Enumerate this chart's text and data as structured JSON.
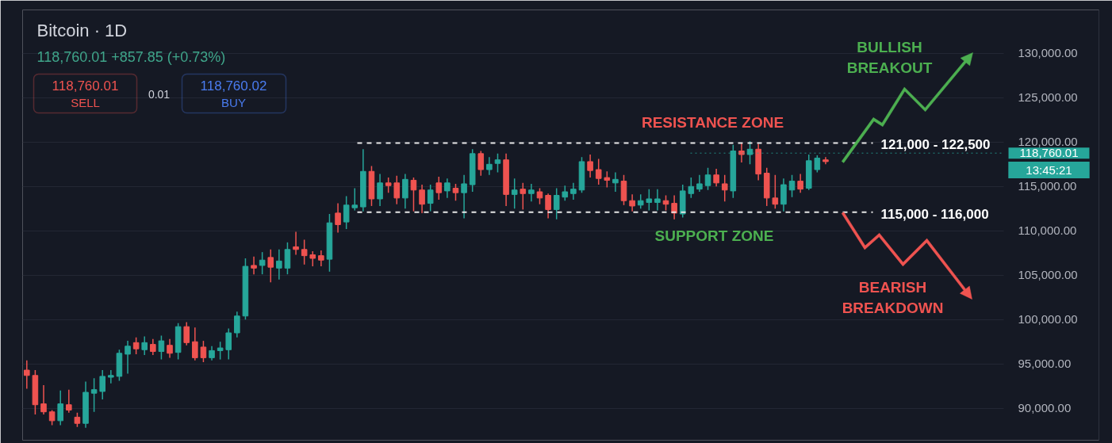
{
  "chart_data": {
    "type": "candlestick",
    "title": "Bitcoin · 1D",
    "categories": [
      null,
      null,
      null,
      null,
      null,
      null,
      null,
      null,
      null,
      null,
      null,
      null,
      null,
      null,
      null,
      null,
      null,
      null,
      null,
      null,
      null,
      null,
      null,
      null,
      null,
      null,
      null,
      null,
      null,
      null,
      null,
      null,
      null,
      null,
      null,
      null,
      null,
      null,
      null,
      null,
      null,
      null,
      null,
      null,
      null,
      null,
      null,
      null,
      null,
      null,
      null,
      null,
      null,
      null,
      null,
      null,
      null,
      null,
      null,
      null,
      null,
      null,
      null,
      null,
      null,
      null,
      null,
      null,
      null,
      null,
      null,
      null,
      null,
      null,
      null,
      null,
      null,
      null,
      null,
      null,
      null,
      null,
      null,
      null,
      null,
      null,
      null,
      null,
      null,
      null,
      null,
      null,
      null,
      null,
      null,
      null,
      null,
      null,
      null,
      null,
      null,
      null,
      null,
      null,
      null,
      null,
      null,
      null,
      null,
      null,
      null,
      null,
      null,
      null,
      null,
      null,
      null,
      null,
      null,
      null,
      null,
      null,
      null,
      null,
      null,
      null,
      null,
      null
    ],
    "ohlc": [
      [
        94300,
        95400,
        92200,
        93700
      ],
      [
        93700,
        94300,
        89300,
        90400
      ],
      [
        90500,
        92600,
        89300,
        89600
      ],
      [
        89600,
        89800,
        88100,
        88600
      ],
      [
        88600,
        92000,
        88100,
        90500
      ],
      [
        90400,
        92100,
        89500,
        89800
      ],
      [
        89000,
        89500,
        87900,
        88300
      ],
      [
        88300,
        93000,
        87800,
        91800
      ],
      [
        91700,
        93400,
        89600,
        92100
      ],
      [
        91900,
        94300,
        91000,
        93600
      ],
      [
        93500,
        94300,
        92800,
        93700
      ],
      [
        93600,
        96600,
        93100,
        96200
      ],
      [
        96100,
        97600,
        93900,
        97000
      ],
      [
        97400,
        98000,
        96100,
        96700
      ],
      [
        96600,
        98100,
        96000,
        97400
      ],
      [
        97200,
        97800,
        96000,
        96400
      ],
      [
        96400,
        98200,
        95500,
        97600
      ],
      [
        97100,
        97800,
        95700,
        96200
      ],
      [
        96300,
        99600,
        95500,
        99200
      ],
      [
        99200,
        99700,
        97100,
        97400
      ],
      [
        97500,
        99100,
        95400,
        95700
      ],
      [
        96900,
        97600,
        95200,
        95700
      ],
      [
        95700,
        97000,
        95400,
        96500
      ],
      [
        96500,
        97500,
        95500,
        96800
      ],
      [
        96600,
        99000,
        95500,
        98500
      ],
      [
        98500,
        100900,
        98000,
        100400
      ],
      [
        100400,
        106900,
        100000,
        106000
      ],
      [
        106100,
        107100,
        105100,
        105800
      ],
      [
        106100,
        107600,
        105100,
        106700
      ],
      [
        107000,
        107900,
        104200,
        105900
      ],
      [
        105800,
        107900,
        104500,
        106600
      ],
      [
        105800,
        108700,
        105100,
        107900
      ],
      [
        108200,
        109900,
        107300,
        107900
      ],
      [
        107900,
        109000,
        106200,
        107200
      ],
      [
        107300,
        107700,
        106000,
        106900
      ],
      [
        107200,
        107800,
        106000,
        106700
      ],
      [
        106800,
        111900,
        105400,
        110900
      ],
      [
        112000,
        113100,
        109800,
        110700
      ],
      [
        111000,
        113900,
        110200,
        112900
      ],
      [
        112600,
        114800,
        112300,
        112900
      ],
      [
        112700,
        119200,
        112200,
        116700
      ],
      [
        116700,
        117300,
        112800,
        113600
      ],
      [
        113600,
        116400,
        112800,
        115400
      ],
      [
        115400,
        116000,
        114300,
        115100
      ],
      [
        115400,
        116200,
        113000,
        113700
      ],
      [
        113700,
        116400,
        112500,
        115800
      ],
      [
        115700,
        116000,
        112200,
        114600
      ],
      [
        114600,
        115200,
        112000,
        113000
      ],
      [
        113100,
        115200,
        112200,
        114600
      ],
      [
        115400,
        116100,
        113500,
        114300
      ],
      [
        114500,
        115900,
        113700,
        115400
      ],
      [
        114800,
        115300,
        113400,
        114300
      ],
      [
        114300,
        116300,
        111400,
        115300
      ],
      [
        115200,
        119200,
        114400,
        118700
      ],
      [
        118700,
        119000,
        116200,
        116900
      ],
      [
        116900,
        118300,
        116300,
        117500
      ],
      [
        117600,
        118700,
        116600,
        118000
      ],
      [
        118000,
        118700,
        112800,
        114100
      ],
      [
        114100,
        115900,
        112500,
        114600
      ],
      [
        114700,
        115400,
        112400,
        114200
      ],
      [
        114200,
        115300,
        113300,
        114600
      ],
      [
        114400,
        114800,
        113000,
        113700
      ],
      [
        114000,
        114200,
        111400,
        112400
      ],
      [
        112400,
        114800,
        111300,
        114000
      ],
      [
        113800,
        115100,
        113400,
        114400
      ],
      [
        114200,
        115400,
        113500,
        114700
      ],
      [
        114600,
        118300,
        114300,
        117800
      ],
      [
        117800,
        118600,
        116000,
        116800
      ],
      [
        116900,
        118100,
        115200,
        115900
      ],
      [
        116000,
        116700,
        114900,
        115700
      ],
      [
        115400,
        116600,
        114400,
        115800
      ],
      [
        115600,
        116300,
        112900,
        113400
      ],
      [
        113400,
        114100,
        112200,
        112800
      ],
      [
        112900,
        114100,
        112500,
        113400
      ],
      [
        113200,
        114700,
        112300,
        113600
      ],
      [
        113200,
        114700,
        112300,
        113600
      ],
      [
        113400,
        114000,
        112300,
        113000
      ],
      [
        113100,
        114000,
        111300,
        112000
      ],
      [
        111900,
        115200,
        111500,
        114500
      ],
      [
        114200,
        116000,
        113700,
        115000
      ],
      [
        114700,
        116300,
        114400,
        115300
      ],
      [
        115100,
        117100,
        114600,
        116300
      ],
      [
        116300,
        117000,
        115000,
        115400
      ],
      [
        115300,
        116300,
        113300,
        114600
      ],
      [
        114500,
        119700,
        113700,
        119000
      ],
      [
        119000,
        119900,
        117700,
        118600
      ],
      [
        118600,
        120100,
        117500,
        119200
      ],
      [
        119200,
        119800,
        115700,
        116400
      ],
      [
        116500,
        117100,
        112800,
        113700
      ],
      [
        113700,
        116300,
        112500,
        113000
      ],
      [
        113000,
        115900,
        112200,
        115200
      ],
      [
        114600,
        116300,
        113800,
        115600
      ],
      [
        115600,
        116400,
        114300,
        114700
      ],
      [
        114800,
        118600,
        114600,
        117900
      ],
      [
        116900,
        118500,
        116600,
        118200
      ],
      [
        118000,
        118300,
        117500,
        117800
      ],
      null,
      null,
      null,
      null,
      null,
      null,
      null,
      null,
      null,
      null,
      null,
      null,
      null,
      null,
      null,
      null,
      null,
      null,
      null,
      null,
      null,
      null,
      null,
      null,
      null,
      null,
      null,
      null,
      null,
      null,
      null,
      null
    ],
    "colors": [
      "#ef5350",
      "#ef5350",
      "#ef5350",
      "#ef5350",
      "#26a69a",
      "#ef5350",
      "#ef5350",
      "#26a69a",
      "#26a69a",
      "#26a69a",
      "#26a69a",
      "#26a69a",
      "#26a69a",
      "#ef5350",
      "#26a69a",
      "#ef5350",
      "#26a69a",
      "#ef5350",
      "#26a69a",
      "#ef5350",
      "#ef5350",
      "#ef5350",
      "#26a69a",
      "#26a69a",
      "#26a69a",
      "#26a69a",
      "#26a69a",
      "#ef5350",
      "#26a69a",
      "#ef5350",
      "#26a69a",
      "#26a69a",
      "#ef5350",
      "#ef5350",
      "#ef5350",
      "#ef5350",
      "#26a69a",
      "#ef5350",
      "#26a69a",
      "#26a69a",
      "#26a69a",
      "#ef5350",
      "#26a69a",
      "#ef5350",
      "#ef5350",
      "#26a69a",
      "#ef5350",
      "#ef5350",
      "#26a69a",
      "#ef5350",
      "#26a69a",
      "#ef5350",
      "#26a69a",
      "#26a69a",
      "#ef5350",
      "#26a69a",
      "#26a69a",
      "#ef5350",
      "#26a69a",
      "#ef5350",
      "#26a69a",
      "#ef5350",
      "#ef5350",
      "#26a69a",
      "#26a69a",
      "#26a69a",
      "#26a69a",
      "#ef5350",
      "#ef5350",
      "#ef5350",
      "#26a69a",
      "#ef5350",
      "#ef5350",
      "#26a69a",
      "#26a69a",
      "#26a69a",
      "#ef5350",
      "#ef5350",
      "#26a69a",
      "#26a69a",
      "#26a69a",
      "#26a69a",
      "#ef5350",
      "#ef5350",
      "#26a69a",
      "#ef5350",
      "#26a69a",
      "#ef5350",
      "#ef5350",
      "#ef5350",
      "#26a69a",
      "#26a69a",
      "#ef5350",
      "#26a69a",
      "#26a69a",
      "#ef5350",
      null,
      null,
      null,
      null,
      null,
      null,
      null,
      null,
      null,
      null,
      null,
      null,
      null,
      null,
      null,
      null,
      null,
      null,
      null,
      null,
      null,
      null,
      null,
      null,
      null,
      null,
      null,
      null,
      null,
      null,
      null,
      null
    ],
    "ylim": [
      86400,
      134900
    ],
    "yticks": [
      {
        "value": 90000,
        "label": "90,000.00"
      },
      {
        "value": 95000,
        "label": "95,000.00"
      },
      {
        "value": 100000,
        "label": "100,000.00"
      },
      {
        "value": 105000,
        "label": "105,000.00"
      },
      {
        "value": 110000,
        "label": "110,000.00"
      },
      {
        "value": 115000,
        "label": "115,000.00"
      },
      {
        "value": 120000,
        "label": "120,000.00"
      },
      {
        "value": 125000,
        "label": "125,000.00"
      },
      {
        "value": 130000,
        "label": "130,000.00"
      }
    ],
    "ref_lines": [
      {
        "axis": "y",
        "value": 119900,
        "color": "#e6e6e6",
        "line_style": "dashed"
      },
      {
        "axis": "y",
        "value": 112100,
        "color": "#e6e6e6",
        "line_style": "dashed"
      },
      {
        "axis": "y",
        "value": 118760.01,
        "label": "118,760.01",
        "color": "#26a69a",
        "line_style": "dotted"
      }
    ],
    "annotations": [
      "118,760.01 +857.85 (+0.73%)",
      "118,760.01",
      "SELL",
      "0.01",
      "118,760.02",
      "BUY",
      "RESISTANCE ZONE",
      "SUPPORT ZONE",
      "BULLISH BREAKOUT",
      "BEARISH BREAKDOWN",
      "13:45:21",
      "121,000 - 122,500",
      "115,000 - 116,000"
    ],
    "grid": "y",
    "tick_labels": "y"
  }
}
